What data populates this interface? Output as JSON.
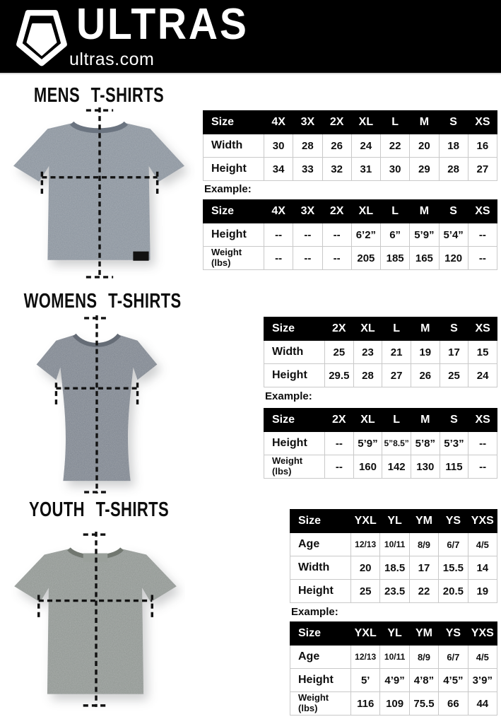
{
  "header": {
    "brand": "ULTRAS",
    "site": "ultras.com",
    "logo_icon": "pentagon-shield-logo",
    "bg_color": "#000000"
  },
  "example_label": "Example:",
  "colors": {
    "table_header_bg": "#000000",
    "table_header_text": "#ffffff",
    "table_border": "#c9c9c9",
    "mens_shirt": "#87909a",
    "womens_shirt": "#7b828c",
    "youth_shirt": "#8d938f"
  },
  "sections": [
    {
      "title": "MENS T-SHIRTS",
      "size_table": {
        "columns": [
          "Size",
          "4X",
          "3X",
          "2X",
          "XL",
          "L",
          "M",
          "S",
          "XS"
        ],
        "rows": [
          {
            "label": "Width",
            "values": [
              "30",
              "28",
              "26",
              "24",
              "22",
              "20",
              "18",
              "16"
            ]
          },
          {
            "label": "Height",
            "values": [
              "34",
              "33",
              "32",
              "31",
              "30",
              "29",
              "28",
              "27"
            ]
          }
        ]
      },
      "example_table": {
        "columns": [
          "Size",
          "4X",
          "3X",
          "2X",
          "XL",
          "L",
          "M",
          "S",
          "XS"
        ],
        "rows": [
          {
            "label": "Height",
            "values": [
              "--",
              "--",
              "--",
              "6’2”",
              "6”",
              "5’9”",
              "5’4”",
              "--"
            ]
          },
          {
            "label": "Weight\n(lbs)",
            "values": [
              "--",
              "--",
              "--",
              "205",
              "185",
              "165",
              "120",
              "--"
            ]
          }
        ]
      }
    },
    {
      "title": "WOMENS T-SHIRTS",
      "size_table": {
        "columns": [
          "Size",
          "2X",
          "XL",
          "L",
          "M",
          "S",
          "XS"
        ],
        "rows": [
          {
            "label": "Width",
            "values": [
              "25",
              "23",
              "21",
              "19",
              "17",
              "15"
            ]
          },
          {
            "label": "Height",
            "values": [
              "29.5",
              "28",
              "27",
              "26",
              "25",
              "24"
            ]
          }
        ]
      },
      "example_table": {
        "columns": [
          "Size",
          "2X",
          "XL",
          "L",
          "M",
          "S",
          "XS"
        ],
        "rows": [
          {
            "label": "Height",
            "values": [
              "--",
              "5’9”",
              "5”8.5”",
              "5’8”",
              "5’3”",
              "--"
            ]
          },
          {
            "label": "Weight\n(lbs)",
            "values": [
              "--",
              "160",
              "142",
              "130",
              "115",
              "--"
            ]
          }
        ]
      }
    },
    {
      "title": "YOUTH T-SHIRTS",
      "size_table": {
        "columns": [
          "Size",
          "YXL",
          "YL",
          "YM",
          "YS",
          "YXS"
        ],
        "rows": [
          {
            "label": "Age",
            "values": [
              "12/13",
              "10/11",
              "8/9",
              "6/7",
              "4/5"
            ]
          },
          {
            "label": "Width",
            "values": [
              "20",
              "18.5",
              "17",
              "15.5",
              "14"
            ]
          },
          {
            "label": "Height",
            "values": [
              "25",
              "23.5",
              "22",
              "20.5",
              "19"
            ]
          }
        ]
      },
      "example_table": {
        "columns": [
          "Size",
          "YXL",
          "YL",
          "YM",
          "YS",
          "YXS"
        ],
        "rows": [
          {
            "label": "Age",
            "values": [
              "12/13",
              "10/11",
              "8/9",
              "6/7",
              "4/5"
            ]
          },
          {
            "label": "Height",
            "values": [
              "5’",
              "4’9”",
              "4’8”",
              "4’5”",
              "3’9”"
            ]
          },
          {
            "label": "Weight\n(lbs)",
            "values": [
              "116",
              "109",
              "75.5",
              "66",
              "44"
            ]
          }
        ]
      }
    }
  ]
}
